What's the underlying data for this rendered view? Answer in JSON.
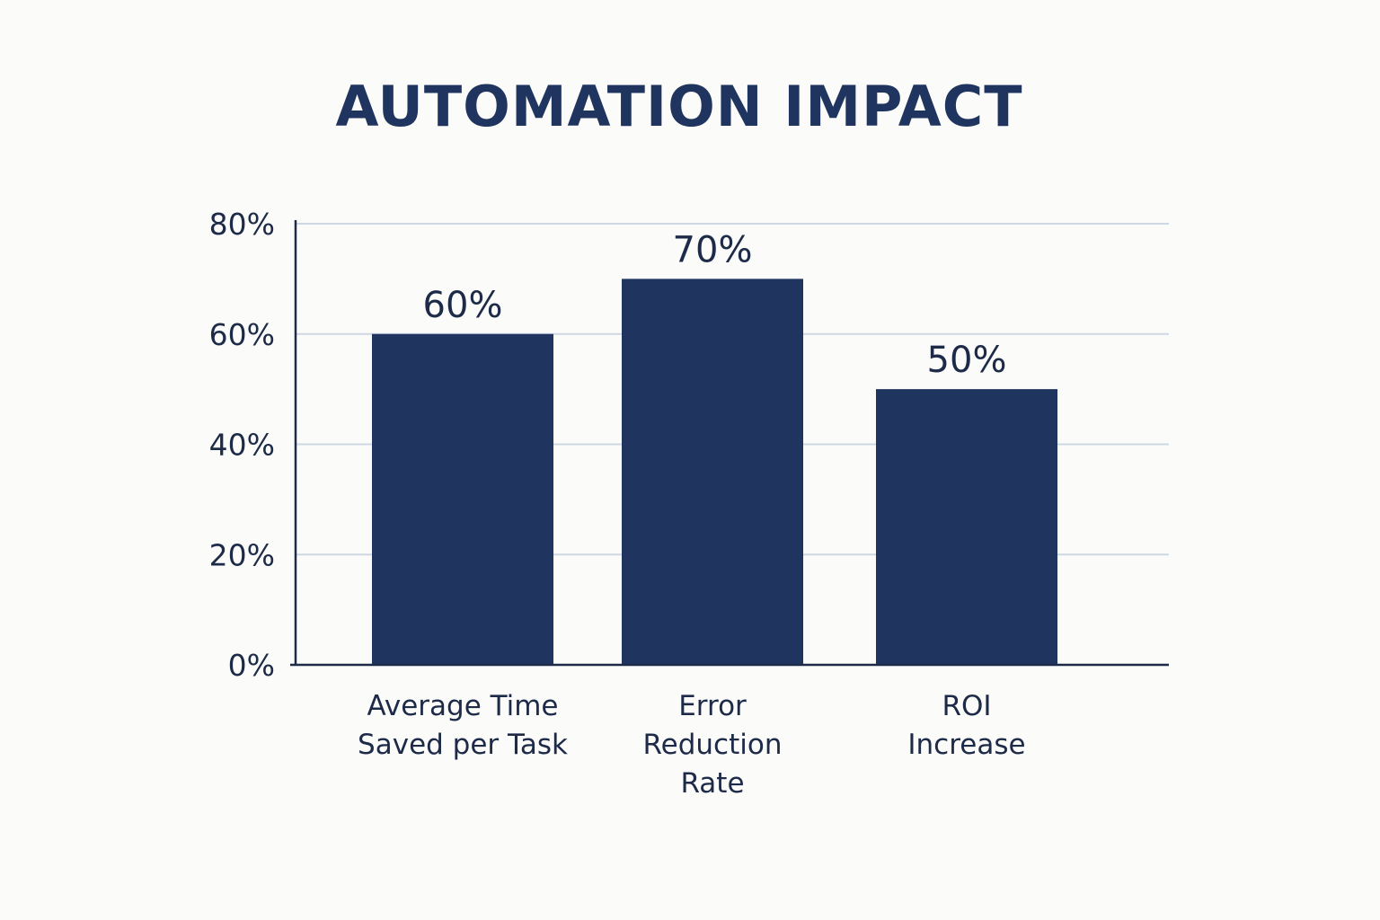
{
  "chart_data": {
    "type": "bar",
    "title": "AUTOMATION IMPACT",
    "categories": [
      "Average Time Saved per Task",
      "Error Reduction Rate",
      "ROI Increase"
    ],
    "category_lines": [
      [
        "Average Time",
        "Saved per Task"
      ],
      [
        "Error",
        "Reduction",
        "Rate"
      ],
      [
        "ROI",
        "Increase"
      ]
    ],
    "values": [
      60,
      70,
      50
    ],
    "value_labels": [
      "60%",
      "70%",
      "50%"
    ],
    "ylim": [
      0,
      80
    ],
    "yticks": [
      0,
      20,
      40,
      60,
      80
    ],
    "ytick_labels": [
      "0%",
      "20%",
      "40%",
      "60%",
      "80%"
    ],
    "xlabel": "",
    "ylabel": "",
    "grid": true,
    "legend": "none",
    "colors": {
      "bar": "#1f3560",
      "axis": "#1d2b48",
      "grid": "#cfd8e2",
      "text": "#1d2b48"
    }
  }
}
